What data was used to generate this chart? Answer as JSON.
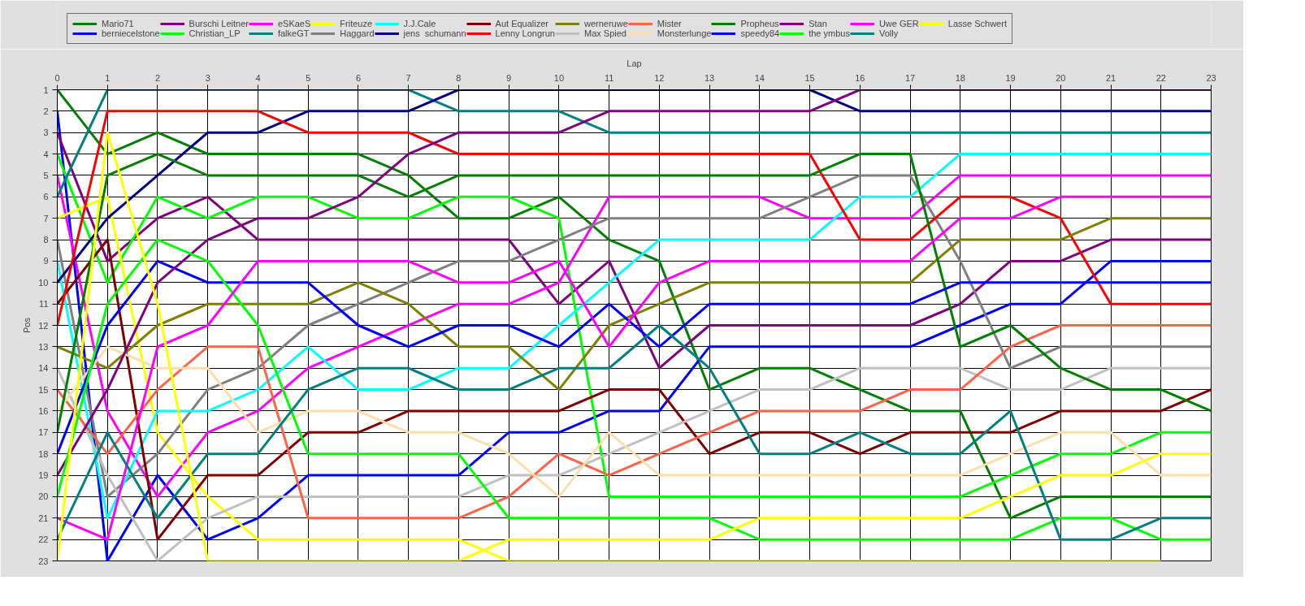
{
  "chart_data": {
    "type": "line",
    "xlabel": "Lap",
    "ylabel": "Pos",
    "x": [
      0,
      1,
      2,
      3,
      4,
      5,
      6,
      7,
      8,
      9,
      10,
      11,
      12,
      13,
      14,
      15,
      16,
      17,
      18,
      19,
      20,
      21,
      22,
      23
    ],
    "xlim": [
      0,
      23
    ],
    "xticks": [
      0,
      1,
      2,
      3,
      4,
      5,
      6,
      7,
      8,
      9,
      10,
      11,
      12,
      13,
      14,
      15,
      16,
      17,
      18,
      19,
      20,
      21,
      22,
      23
    ],
    "ylim": [
      23,
      1
    ],
    "yticks": [
      1,
      2,
      3,
      4,
      5,
      6,
      7,
      8,
      9,
      10,
      11,
      12,
      13,
      14,
      15,
      16,
      17,
      18,
      19,
      20,
      21,
      22,
      23
    ],
    "grid": true,
    "legend": "top",
    "series": [
      {
        "name": "Mario71",
        "color": "#008000",
        "values": [
          1,
          4,
          3,
          4,
          4,
          4,
          4,
          5,
          7,
          7,
          6,
          8,
          9,
          15,
          14,
          14,
          15,
          16,
          16,
          21,
          20,
          20,
          20,
          20
        ]
      },
      {
        "name": "berniecelstone",
        "color": "#0000ff",
        "values": [
          2,
          23,
          19,
          22,
          21,
          19,
          19,
          19,
          19,
          17,
          17,
          16,
          16,
          13,
          13,
          13,
          13,
          13,
          12,
          11,
          11,
          9,
          9,
          9
        ]
      },
      {
        "name": "Burschi Leitner",
        "color": "#800080",
        "values": [
          3,
          9,
          7,
          6,
          8,
          8,
          8,
          8,
          8,
          8,
          11,
          9,
          14,
          12,
          12,
          12,
          12,
          12,
          11,
          9,
          9,
          8,
          8,
          8
        ]
      },
      {
        "name": "Christian_LP",
        "color": "#00ff00",
        "values": [
          4,
          10,
          6,
          7,
          6,
          6,
          7,
          7,
          6,
          6,
          7,
          20,
          20,
          20,
          20,
          20,
          20,
          20,
          20,
          19,
          18,
          18,
          17,
          17
        ]
      },
      {
        "name": "eSKaeS",
        "color": "#ff00ff",
        "values": [
          5,
          16,
          20,
          17,
          16,
          14,
          13,
          12,
          11,
          11,
          10,
          6,
          6,
          6,
          6,
          7,
          7,
          7,
          5,
          5,
          5,
          5,
          5,
          5
        ]
      },
      {
        "name": "falkeGT",
        "color": "#008080",
        "values": [
          6,
          1,
          1,
          1,
          1,
          1,
          1,
          1,
          2,
          2,
          2,
          3,
          3,
          3,
          3,
          3,
          3,
          3,
          3,
          3,
          3,
          3,
          3,
          3
        ]
      },
      {
        "name": "Friteuze",
        "color": "#ffff00",
        "values": [
          7,
          6,
          17,
          20,
          22,
          22,
          22,
          22,
          22,
          23,
          23,
          23,
          23,
          23,
          23,
          23,
          23,
          23,
          23,
          23,
          23,
          23,
          23,
          null
        ]
      },
      {
        "name": "Haggard",
        "color": "#808080",
        "values": [
          8,
          20,
          18,
          15,
          14,
          12,
          11,
          10,
          9,
          9,
          8,
          7,
          7,
          7,
          7,
          6,
          5,
          5,
          9,
          14,
          13,
          13,
          13,
          13
        ]
      },
      {
        "name": "J.J.Cale",
        "color": "#00ffff",
        "values": [
          9,
          21,
          16,
          16,
          15,
          13,
          15,
          15,
          14,
          14,
          12,
          10,
          8,
          8,
          8,
          8,
          6,
          6,
          4,
          4,
          4,
          4,
          4,
          4
        ]
      },
      {
        "name": "jens  schumann",
        "color": "#000080",
        "values": [
          10,
          7,
          5,
          3,
          3,
          2,
          2,
          2,
          1,
          1,
          1,
          1,
          1,
          1,
          1,
          1,
          2,
          2,
          2,
          2,
          2,
          2,
          2,
          2
        ]
      },
      {
        "name": "Aut Equalizer",
        "color": "#800000",
        "values": [
          11,
          8,
          22,
          19,
          19,
          17,
          17,
          16,
          16,
          16,
          16,
          15,
          15,
          18,
          17,
          17,
          18,
          17,
          17,
          17,
          16,
          16,
          16,
          15
        ]
      },
      {
        "name": "Lenny Longrun",
        "color": "#ff0000",
        "values": [
          12,
          2,
          2,
          2,
          2,
          3,
          3,
          3,
          4,
          4,
          4,
          4,
          4,
          4,
          4,
          4,
          8,
          8,
          6,
          6,
          7,
          11,
          11,
          11
        ]
      },
      {
        "name": "werneruwe",
        "color": "#808000",
        "values": [
          13,
          14,
          12,
          11,
          11,
          11,
          10,
          11,
          13,
          13,
          15,
          12,
          11,
          10,
          10,
          10,
          10,
          10,
          8,
          8,
          8,
          7,
          7,
          7
        ]
      },
      {
        "name": "Max Spied",
        "color": "#c0c0c0",
        "values": [
          14,
          19,
          23,
          21,
          20,
          20,
          20,
          20,
          20,
          19,
          19,
          18,
          17,
          16,
          15,
          15,
          14,
          14,
          14,
          15,
          15,
          14,
          14,
          14
        ]
      },
      {
        "name": "Mister",
        "color": "#ff6347",
        "values": [
          15,
          18,
          15,
          13,
          13,
          21,
          21,
          21,
          21,
          20,
          18,
          19,
          18,
          17,
          16,
          16,
          16,
          15,
          15,
          13,
          12,
          12,
          12,
          12
        ]
      },
      {
        "name": "Monsterlunge",
        "color": "#ffdead",
        "values": [
          16,
          13,
          14,
          14,
          17,
          16,
          16,
          17,
          17,
          18,
          20,
          17,
          19,
          19,
          19,
          19,
          19,
          19,
          19,
          18,
          17,
          17,
          19,
          19
        ]
      },
      {
        "name": "Propheus",
        "color": "#008000",
        "values": [
          17,
          5,
          4,
          5,
          5,
          5,
          5,
          6,
          5,
          5,
          5,
          5,
          5,
          5,
          5,
          5,
          4,
          4,
          13,
          12,
          14,
          15,
          15,
          16
        ]
      },
      {
        "name": "speedy84",
        "color": "#0000ff",
        "values": [
          18,
          12,
          9,
          10,
          10,
          10,
          12,
          13,
          12,
          12,
          13,
          11,
          13,
          11,
          11,
          11,
          11,
          11,
          10,
          10,
          10,
          10,
          10,
          10
        ]
      },
      {
        "name": "Stan",
        "color": "#800080",
        "values": [
          19,
          15,
          10,
          8,
          7,
          7,
          6,
          4,
          3,
          3,
          3,
          2,
          2,
          2,
          2,
          2,
          1,
          1,
          1,
          1,
          1,
          1,
          1,
          1
        ]
      },
      {
        "name": "the ymbus",
        "color": "#00ff00",
        "values": [
          20,
          11,
          8,
          9,
          12,
          18,
          18,
          18,
          18,
          21,
          21,
          21,
          21,
          21,
          22,
          22,
          22,
          22,
          22,
          22,
          21,
          21,
          22,
          22
        ]
      },
      {
        "name": "Uwe GER",
        "color": "#ff00ff",
        "values": [
          21,
          22,
          13,
          12,
          9,
          9,
          9,
          9,
          10,
          10,
          9,
          13,
          10,
          9,
          9,
          9,
          9,
          9,
          7,
          7,
          6,
          6,
          6,
          6
        ]
      },
      {
        "name": "Volly",
        "color": "#008080",
        "values": [
          22,
          17,
          21,
          18,
          18,
          15,
          14,
          14,
          15,
          15,
          14,
          14,
          12,
          14,
          18,
          18,
          17,
          18,
          18,
          16,
          22,
          22,
          21,
          21
        ]
      },
      {
        "name": "Lasse Schwert",
        "color": "#ffff00",
        "values": [
          23,
          3,
          11,
          23,
          23,
          23,
          23,
          23,
          23,
          22,
          22,
          22,
          22,
          22,
          21,
          21,
          21,
          21,
          21,
          20,
          19,
          19,
          18,
          18
        ]
      }
    ]
  }
}
